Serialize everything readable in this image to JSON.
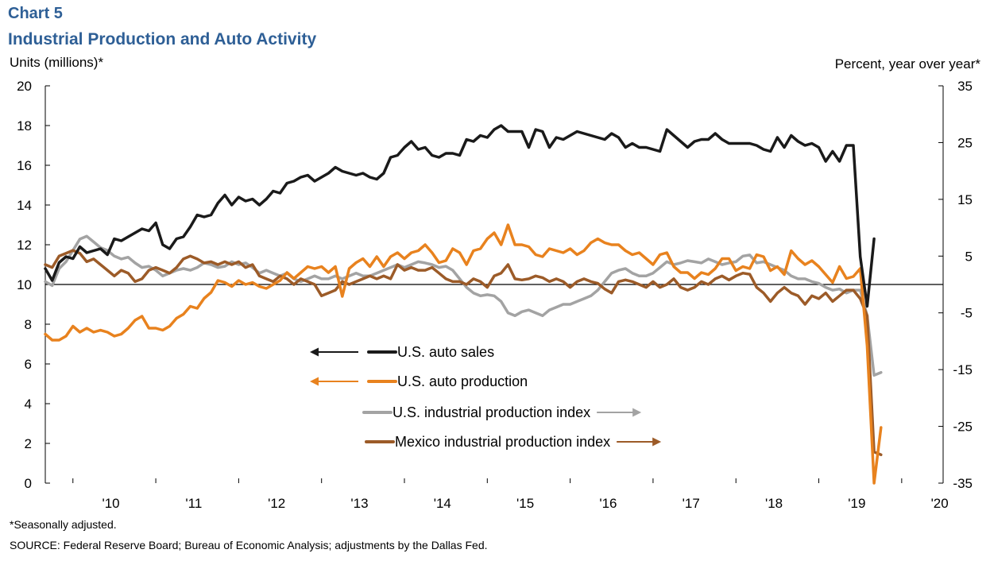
{
  "header": {
    "chart_number": "Chart 5",
    "title": "Industrial Production and Auto Activity",
    "left_axis_label": "Units  (millions)*",
    "right_axis_label": "Percent, year over year*"
  },
  "footer": {
    "note": "*Seasonally adjusted.",
    "source": "SOURCE:  Federal Reserve Board; Bureau of Economic Analysis; adjustments  by the Dallas Fed."
  },
  "colors": {
    "us_auto_sales": "#1a1a1a",
    "us_auto_production": "#e8821e",
    "us_industrial_production": "#a3a3a3",
    "mexico_industrial_production": "#9c5b28"
  },
  "chart_data": {
    "type": "line",
    "x_axis": {
      "start": "2009-09",
      "end": "2020-07",
      "tick_labels": [
        "'10",
        "'11",
        "'12",
        "'13",
        "'14",
        "'15",
        "'16",
        "'17",
        "'18",
        "'19",
        "'20"
      ]
    },
    "y_left": {
      "label": "Units  (millions)*",
      "ylim": [
        0,
        20
      ],
      "ticks": [
        "0",
        "2",
        "4",
        "6",
        "8",
        "10",
        "12",
        "14",
        "16",
        "18",
        "20"
      ]
    },
    "y_right": {
      "label": "Percent, year over year*",
      "ylim": [
        -35,
        35
      ],
      "ticks": [
        "-35",
        "-25",
        "-15",
        "-5",
        "5",
        "15",
        "25",
        "35"
      ],
      "zero_line": true
    },
    "series": [
      {
        "name": "U.S. auto sales",
        "axis": "left",
        "legend_arrow": "left",
        "start": "2009-09",
        "values": [
          10.8,
          10.2,
          11.1,
          11.4,
          11.3,
          11.9,
          11.6,
          11.7,
          11.8,
          11.5,
          12.3,
          12.2,
          12.4,
          12.6,
          12.8,
          12.7,
          13.1,
          12.0,
          11.8,
          12.3,
          12.4,
          12.9,
          13.5,
          13.4,
          13.5,
          14.1,
          14.5,
          14.0,
          14.4,
          14.2,
          14.3,
          14.0,
          14.3,
          14.7,
          14.6,
          15.1,
          15.2,
          15.4,
          15.5,
          15.2,
          15.4,
          15.6,
          15.9,
          15.7,
          15.6,
          15.5,
          15.6,
          15.4,
          15.3,
          15.6,
          16.4,
          16.5,
          16.9,
          17.2,
          16.8,
          16.9,
          16.5,
          16.4,
          16.6,
          16.6,
          16.5,
          17.3,
          17.2,
          17.5,
          17.4,
          17.8,
          18.0,
          17.7,
          17.7,
          17.7,
          16.9,
          17.8,
          17.7,
          16.9,
          17.4,
          17.3,
          17.5,
          17.7,
          17.6,
          17.5,
          17.4,
          17.3,
          17.6,
          17.4,
          16.9,
          17.1,
          16.9,
          16.9,
          16.8,
          16.7,
          17.8,
          17.5,
          17.2,
          16.9,
          17.2,
          17.3,
          17.3,
          17.6,
          17.3,
          17.1,
          17.1,
          17.1,
          17.1,
          17.0,
          16.8,
          16.7,
          17.4,
          16.9,
          17.5,
          17.2,
          17.0,
          17.1,
          16.9,
          16.2,
          16.7,
          16.2,
          17.0,
          17.0,
          11.4,
          8.9,
          12.3
        ]
      },
      {
        "name": "U.S. auto production",
        "axis": "left",
        "legend_arrow": "left",
        "start": "2009-09",
        "values": [
          7.5,
          7.2,
          7.2,
          7.4,
          7.9,
          7.6,
          7.8,
          7.6,
          7.7,
          7.6,
          7.4,
          7.5,
          7.8,
          8.2,
          8.4,
          7.8,
          7.8,
          7.7,
          7.9,
          8.3,
          8.5,
          8.9,
          8.8,
          9.3,
          9.6,
          10.2,
          10.1,
          9.9,
          10.2,
          10.0,
          10.1,
          9.9,
          9.8,
          10.0,
          10.2,
          10.6,
          10.3,
          10.6,
          10.9,
          10.8,
          10.9,
          10.6,
          10.9,
          9.4,
          10.8,
          11.1,
          11.3,
          10.9,
          11.4,
          10.9,
          11.4,
          11.6,
          11.3,
          11.6,
          11.7,
          12.0,
          11.6,
          11.1,
          11.2,
          11.8,
          11.6,
          11.0,
          11.7,
          11.8,
          12.3,
          12.6,
          12.0,
          13.0,
          12.0,
          12.0,
          11.9,
          11.5,
          11.4,
          11.8,
          11.7,
          11.6,
          11.8,
          11.5,
          11.7,
          12.1,
          12.3,
          12.1,
          12.0,
          12.0,
          11.7,
          11.5,
          11.6,
          11.3,
          11.0,
          11.5,
          11.6,
          10.9,
          10.6,
          10.6,
          10.3,
          10.6,
          10.5,
          10.8,
          11.3,
          11.3,
          10.7,
          10.9,
          10.8,
          11.5,
          11.4,
          10.7,
          10.9,
          10.5,
          11.7,
          11.3,
          11.0,
          11.2,
          10.9,
          10.5,
          10.1,
          10.9,
          10.3,
          10.4,
          10.8,
          6.9,
          0.0,
          2.8
        ]
      },
      {
        "name": "U.S. industrial production index",
        "axis": "right",
        "legend_arrow": "right",
        "start": "2009-09",
        "values": [
          0.5,
          -0.2,
          2.8,
          4.0,
          6.0,
          8.0,
          8.5,
          7.5,
          6.5,
          6.0,
          5.0,
          4.5,
          4.8,
          3.8,
          3.0,
          3.2,
          2.5,
          1.5,
          2.0,
          2.5,
          2.8,
          2.5,
          3.0,
          3.8,
          3.5,
          3.0,
          3.2,
          4.0,
          3.5,
          3.8,
          3.0,
          2.0,
          2.5,
          2.0,
          1.5,
          2.0,
          1.0,
          0.5,
          1.0,
          1.5,
          1.0,
          1.0,
          1.5,
          1.0,
          1.5,
          2.0,
          1.5,
          1.5,
          2.0,
          2.5,
          3.0,
          3.5,
          3.0,
          3.5,
          4.0,
          3.8,
          3.5,
          3.0,
          3.2,
          2.5,
          1.0,
          -0.5,
          -1.5,
          -2.0,
          -1.8,
          -2.0,
          -3.0,
          -5.0,
          -5.5,
          -4.8,
          -4.5,
          -5.0,
          -5.5,
          -4.5,
          -4.0,
          -3.5,
          -3.5,
          -3.0,
          -2.5,
          -2.0,
          -1.0,
          0.5,
          2.0,
          2.5,
          2.8,
          2.0,
          1.5,
          1.5,
          2.0,
          3.0,
          4.0,
          3.5,
          3.8,
          4.2,
          4.0,
          3.8,
          4.5,
          4.0,
          3.5,
          3.8,
          4.0,
          5.0,
          5.2,
          3.8,
          4.0,
          3.5,
          3.0,
          2.5,
          1.5,
          1.0,
          1.0,
          0.5,
          0.2,
          -0.5,
          -1.0,
          -0.8,
          -1.5,
          -1.0,
          -1.0,
          -5.5,
          -16.0,
          -15.5
        ]
      },
      {
        "name": "Mexico industrial production index",
        "axis": "right",
        "legend_arrow": "right",
        "start": "2009-09",
        "values": [
          3.5,
          3.0,
          5.0,
          5.5,
          6.0,
          5.5,
          4.0,
          4.5,
          3.5,
          2.5,
          1.5,
          2.5,
          2.0,
          0.5,
          1.0,
          2.5,
          3.0,
          2.5,
          2.0,
          3.0,
          4.5,
          5.0,
          4.5,
          3.8,
          4.0,
          3.5,
          4.0,
          3.5,
          4.0,
          3.0,
          3.5,
          1.5,
          1.0,
          0.5,
          1.5,
          1.0,
          0.0,
          1.0,
          0.5,
          0.0,
          -2.0,
          -1.5,
          -1.0,
          0.5,
          0.0,
          0.5,
          1.0,
          1.5,
          1.0,
          1.5,
          1.0,
          3.5,
          2.5,
          3.0,
          2.5,
          2.5,
          3.0,
          2.0,
          1.0,
          0.5,
          0.5,
          0.0,
          1.0,
          0.5,
          -0.5,
          1.5,
          2.0,
          3.5,
          1.0,
          0.8,
          1.0,
          1.5,
          1.2,
          0.5,
          1.0,
          0.5,
          -0.5,
          0.5,
          1.0,
          0.5,
          0.2,
          -0.8,
          -1.5,
          0.5,
          0.8,
          0.5,
          0.0,
          -0.5,
          0.5,
          -0.5,
          0.0,
          1.0,
          -0.5,
          -1.0,
          -0.5,
          0.5,
          0.0,
          1.0,
          1.5,
          0.8,
          1.5,
          2.0,
          1.8,
          -0.5,
          -1.5,
          -3.0,
          -1.5,
          -0.5,
          -1.5,
          -2.0,
          -3.5,
          -2.0,
          -2.5,
          -1.5,
          -3.0,
          -2.0,
          -1.0,
          -1.0,
          -2.5,
          -5.5,
          -29.5,
          -30.0
        ]
      }
    ],
    "legend": [
      {
        "label": "U.S. auto sales",
        "arrow": "left"
      },
      {
        "label": "U.S. auto production",
        "arrow": "left"
      },
      {
        "label": "U.S. industrial production index",
        "arrow": "right"
      },
      {
        "label": "Mexico industrial production index",
        "arrow": "right"
      }
    ]
  }
}
